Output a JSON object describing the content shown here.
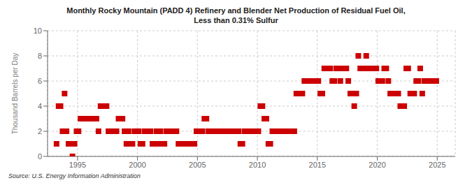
{
  "chart_data": {
    "type": "scatter",
    "title": "Monthly Rocky Mountain (PADD 4) Refinery and Blender Net Production of Residual Fuel Oil,\nLess than 0.31% Sulfur",
    "ylabel": "Thousand Barrels per Day",
    "annotations": [
      "Source: U.S. Energy Information Administration"
    ],
    "color": "#cc0000",
    "marker": "square",
    "grid": true,
    "xlim": [
      1992.5,
      2026.5
    ],
    "xticks": [
      1995,
      2000,
      2005,
      2010,
      2015,
      2020,
      2025
    ],
    "ylim": [
      0,
      10
    ],
    "yticks": [
      0,
      2,
      4,
      6,
      8,
      10
    ],
    "x": [
      1993.25,
      1993.42,
      1993.58,
      1993.75,
      1993.92,
      1994.08,
      1994.25,
      1994.42,
      1994.58,
      1994.75,
      1994.92,
      1995.08,
      1995.25,
      1995.42,
      1995.58,
      1995.75,
      1995.92,
      1996.08,
      1996.25,
      1996.42,
      1996.58,
      1996.75,
      1996.92,
      1997.08,
      1997.25,
      1997.42,
      1997.58,
      1997.75,
      1997.92,
      1998.08,
      1998.25,
      1998.42,
      1998.58,
      1998.75,
      1998.92,
      1999.08,
      1999.25,
      1999.42,
      1999.58,
      1999.75,
      1999.92,
      2000.08,
      2000.25,
      2000.42,
      2000.58,
      2000.75,
      2000.92,
      2001.08,
      2001.25,
      2001.42,
      2001.58,
      2001.75,
      2001.92,
      2002.08,
      2002.25,
      2002.42,
      2002.58,
      2002.75,
      2002.92,
      2003.08,
      2003.25,
      2003.42,
      2003.58,
      2003.75,
      2003.92,
      2004.08,
      2004.25,
      2004.42,
      2004.58,
      2004.75,
      2004.92,
      2005.08,
      2005.25,
      2005.42,
      2005.58,
      2005.75,
      2005.92,
      2006.08,
      2006.25,
      2006.42,
      2006.58,
      2006.75,
      2006.92,
      2007.08,
      2007.25,
      2007.42,
      2007.58,
      2007.75,
      2007.92,
      2008.08,
      2008.25,
      2008.42,
      2008.58,
      2008.75,
      2008.92,
      2009.08,
      2009.25,
      2009.42,
      2009.58,
      2009.75,
      2009.92,
      2010.08,
      2010.25,
      2010.42,
      2010.58,
      2010.75,
      2010.92,
      2011.08,
      2011.25,
      2011.42,
      2011.58,
      2011.75,
      2011.92,
      2012.08,
      2012.25,
      2012.42,
      2012.58,
      2012.75,
      2012.92,
      2013.08,
      2013.25,
      2013.42,
      2013.58,
      2013.75,
      2013.92,
      2014.08,
      2014.25,
      2014.42,
      2014.58,
      2014.75,
      2014.92,
      2015.08,
      2015.25,
      2015.42,
      2015.58,
      2015.75,
      2015.92,
      2016.08,
      2016.25,
      2016.42,
      2016.58,
      2016.75,
      2016.92,
      2017.08,
      2017.25,
      2017.42,
      2017.58,
      2017.75,
      2017.92,
      2018.08,
      2018.25,
      2018.42,
      2018.58,
      2018.75,
      2018.92,
      2019.08,
      2019.25,
      2019.42,
      2019.58,
      2019.75,
      2019.92,
      2020.08,
      2020.25,
      2020.42,
      2020.58,
      2020.75,
      2020.92,
      2021.08,
      2021.25,
      2021.42,
      2021.58,
      2021.75,
      2021.92,
      2022.08,
      2022.25,
      2022.42,
      2022.58,
      2022.75,
      2022.92,
      2023.08,
      2023.25,
      2023.42,
      2023.58,
      2023.75,
      2023.92,
      2024.08,
      2024.25,
      2024.42,
      2024.58,
      2024.75,
      2024.92
    ],
    "values": [
      1,
      4,
      4,
      2,
      5,
      2,
      1,
      1,
      0,
      1,
      2,
      2,
      3,
      3,
      3,
      3,
      3,
      3,
      3,
      3,
      3,
      2,
      4,
      4,
      4,
      4,
      2,
      2,
      2,
      2,
      2,
      3,
      3,
      3,
      2,
      1,
      2,
      1,
      1,
      2,
      2,
      2,
      1,
      1,
      2,
      2,
      2,
      2,
      1,
      1,
      2,
      1,
      2,
      1,
      1,
      2,
      2,
      2,
      2,
      2,
      2,
      1,
      1,
      1,
      1,
      1,
      1,
      1,
      1,
      1,
      2,
      2,
      2,
      2,
      3,
      3,
      2,
      2,
      2,
      2,
      2,
      2,
      2,
      2,
      2,
      2,
      2,
      2,
      2,
      2,
      2,
      2,
      1,
      1,
      2,
      2,
      2,
      2,
      2,
      2,
      2,
      2,
      4,
      4,
      3,
      3,
      1,
      1,
      2,
      2,
      2,
      2,
      2,
      2,
      2,
      2,
      2,
      2,
      2,
      2,
      5,
      5,
      5,
      5,
      6,
      6,
      6,
      6,
      6,
      6,
      6,
      6,
      5,
      5,
      7,
      7,
      7,
      7,
      6,
      6,
      7,
      7,
      6,
      7,
      7,
      7,
      6,
      5,
      5,
      4,
      5,
      8,
      7,
      7,
      7,
      8,
      7,
      7,
      7,
      7,
      7,
      6,
      6,
      6,
      7,
      7,
      6,
      5,
      5,
      5,
      5,
      5,
      4,
      4,
      4,
      7,
      7,
      5,
      5,
      5,
      6,
      6,
      7,
      5,
      6,
      6,
      6,
      6,
      6,
      6,
      6
    ]
  }
}
